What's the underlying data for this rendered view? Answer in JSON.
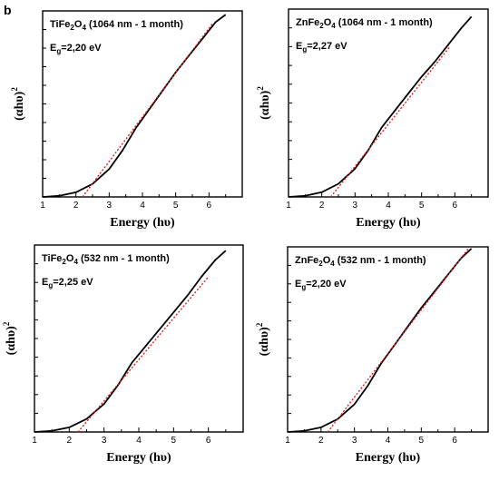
{
  "panel_label": "b",
  "chart_data": [
    {
      "type": "line",
      "compound": {
        "base": "TiFe",
        "sub1": "2",
        "mid": "O",
        "sub2": "4"
      },
      "condition": "(1064 nm - 1 month)",
      "eg": {
        "pre": "E",
        "sub": "g",
        "value": "=2,20 eV"
      },
      "xlabel": "Energy (hυ)",
      "ylabel": {
        "base": "(αhυ)",
        "sup": "2"
      },
      "xlim": [
        1,
        7
      ],
      "ylim": [
        0,
        1
      ],
      "x_ticks": [
        "1",
        "2",
        "3",
        "4",
        "5",
        "6"
      ],
      "series": [
        {
          "style": "solid",
          "color": "#000000",
          "x": [
            1.0,
            1.5,
            2.0,
            2.5,
            3.0,
            3.4,
            3.8,
            4.2,
            4.6,
            5.0,
            5.4,
            5.8,
            6.2,
            6.5
          ],
          "y": [
            0.0,
            0.006,
            0.025,
            0.07,
            0.15,
            0.25,
            0.37,
            0.47,
            0.57,
            0.67,
            0.76,
            0.85,
            0.94,
            0.98
          ]
        },
        {
          "style": "dotted",
          "color": "#e02020",
          "x": [
            2.2,
            6.1
          ],
          "y": [
            0.0,
            0.93
          ]
        }
      ]
    },
    {
      "type": "line",
      "compound": {
        "base": "ZnFe",
        "sub1": "2",
        "mid": "O",
        "sub2": "4"
      },
      "condition": "(1064 nm - 1 month)",
      "eg": {
        "pre": "E",
        "sub": "g",
        "value": "=2,27 eV"
      },
      "xlabel": "Energy (hυ)",
      "ylabel": {
        "base": "(αhυ)",
        "sup": "2"
      },
      "xlim": [
        1,
        7
      ],
      "ylim": [
        0,
        1
      ],
      "x_ticks": [
        "1",
        "2",
        "3",
        "4",
        "5",
        "6"
      ],
      "series": [
        {
          "style": "solid",
          "color": "#000000",
          "x": [
            1.0,
            1.5,
            2.0,
            2.5,
            3.0,
            3.4,
            3.8,
            4.2,
            4.6,
            5.0,
            5.4,
            5.8,
            6.2,
            6.5
          ],
          "y": [
            0.0,
            0.006,
            0.025,
            0.07,
            0.15,
            0.25,
            0.37,
            0.46,
            0.55,
            0.64,
            0.72,
            0.81,
            0.9,
            0.96
          ]
        },
        {
          "style": "dotted",
          "color": "#e02020",
          "x": [
            2.27,
            5.85
          ],
          "y": [
            0.0,
            0.8
          ]
        }
      ]
    },
    {
      "type": "line",
      "compound": {
        "base": "TiFe",
        "sub1": "2",
        "mid": "O",
        "sub2": "4"
      },
      "condition": "(532 nm - 1 month)",
      "eg": {
        "pre": "E",
        "sub": "g",
        "value": "=2,25 eV"
      },
      "xlabel": "Energy (hυ)",
      "ylabel": {
        "base": "(αhυ)",
        "sup": "2"
      },
      "xlim": [
        1,
        7
      ],
      "ylim": [
        0,
        1
      ],
      "x_ticks": [
        "1",
        "2",
        "3",
        "4",
        "5",
        "6"
      ],
      "series": [
        {
          "style": "solid",
          "color": "#000000",
          "x": [
            1.0,
            1.5,
            2.0,
            2.5,
            3.0,
            3.4,
            3.8,
            4.2,
            4.6,
            5.0,
            5.4,
            5.8,
            6.2,
            6.5
          ],
          "y": [
            0.0,
            0.006,
            0.025,
            0.07,
            0.15,
            0.25,
            0.37,
            0.46,
            0.55,
            0.64,
            0.73,
            0.83,
            0.92,
            0.97
          ]
        },
        {
          "style": "dotted",
          "color": "#e02020",
          "x": [
            2.25,
            6.0
          ],
          "y": [
            0.0,
            0.83
          ]
        }
      ]
    },
    {
      "type": "line",
      "compound": {
        "base": "ZnFe",
        "sub1": "2",
        "mid": "O",
        "sub2": "4"
      },
      "condition": "(532 nm - 1 month)",
      "eg": {
        "pre": "E",
        "sub": "g",
        "value": "=2,20 eV"
      },
      "xlabel": "Energy (hυ)",
      "ylabel": {
        "base": "(αhυ)",
        "sup": "2"
      },
      "xlim": [
        1,
        7
      ],
      "ylim": [
        0,
        1
      ],
      "x_ticks": [
        "1",
        "2",
        "3",
        "4",
        "5",
        "6"
      ],
      "series": [
        {
          "style": "solid",
          "color": "#000000",
          "x": [
            1.0,
            1.5,
            2.0,
            2.5,
            3.0,
            3.4,
            3.8,
            4.2,
            4.6,
            5.0,
            5.4,
            5.8,
            6.2,
            6.5
          ],
          "y": [
            0.0,
            0.006,
            0.025,
            0.07,
            0.15,
            0.25,
            0.37,
            0.47,
            0.57,
            0.67,
            0.76,
            0.85,
            0.94,
            0.99
          ]
        },
        {
          "style": "dotted",
          "color": "#e02020",
          "x": [
            2.2,
            6.45
          ],
          "y": [
            0.0,
            1.0
          ]
        }
      ]
    }
  ]
}
